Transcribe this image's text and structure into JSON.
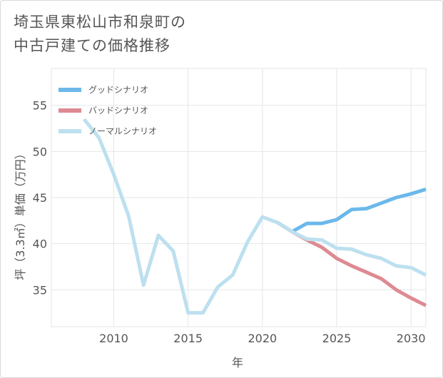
{
  "header": {
    "title_line1": "埼玉県東松山市和泉町の",
    "title_line2": "中古戸建ての価格推移"
  },
  "chart_data": {
    "type": "line",
    "title": "埼玉県東松山市和泉町の中古戸建ての価格推移",
    "xlabel": "年",
    "ylabel": "坪（3.3㎡）単価（万円）",
    "xlim": [
      2005.8,
      2031
    ],
    "ylim": [
      31,
      59
    ],
    "xticks": [
      2010,
      2015,
      2020,
      2025,
      2030
    ],
    "yticks": [
      35,
      40,
      45,
      50,
      55
    ],
    "grid": true,
    "legend_position": "top-left",
    "series": [
      {
        "name": "グッドシナリオ",
        "color": "#6cb8ea",
        "x": [
          2021,
          2022,
          2023,
          2024,
          2025,
          2026,
          2027,
          2028,
          2029,
          2030,
          2031
        ],
        "y": [
          42.3,
          41.3,
          42.2,
          42.2,
          42.6,
          43.7,
          43.8,
          44.4,
          45.0,
          45.4,
          45.9
        ]
      },
      {
        "name": "バッドシナリオ",
        "color": "#de8a92",
        "x": [
          2021,
          2022,
          2023,
          2024,
          2025,
          2026,
          2027,
          2028,
          2029,
          2030,
          2031
        ],
        "y": [
          42.3,
          41.3,
          40.4,
          39.6,
          38.4,
          37.6,
          36.9,
          36.2,
          35.0,
          34.1,
          33.3
        ]
      },
      {
        "name": "ノーマルシナリオ",
        "color": "#bde0ef",
        "x": [
          2008,
          2009,
          2010,
          2011,
          2012,
          2013,
          2014,
          2015,
          2016,
          2017,
          2018,
          2019,
          2020,
          2021,
          2022,
          2023,
          2024,
          2025,
          2026,
          2027,
          2028,
          2029,
          2030,
          2031
        ],
        "y": [
          53.5,
          51.5,
          47.5,
          43.0,
          35.5,
          40.9,
          39.2,
          32.5,
          32.5,
          35.3,
          36.6,
          40.2,
          42.9,
          42.3,
          41.3,
          40.5,
          40.4,
          39.5,
          39.4,
          38.8,
          38.4,
          37.6,
          37.4,
          36.6
        ]
      }
    ]
  }
}
